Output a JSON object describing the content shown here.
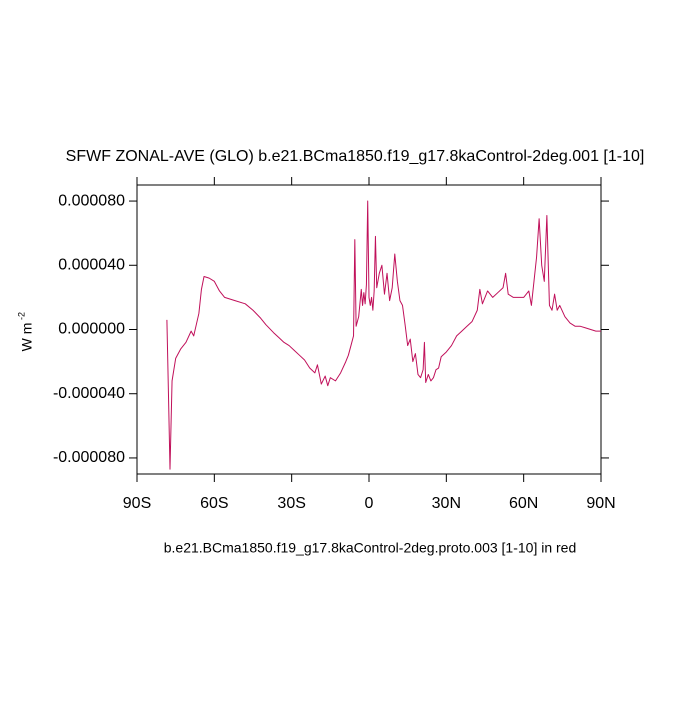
{
  "chart_data": {
    "type": "line",
    "title": "SFWF ZONAL-AVE (GLO) b.e21.BCma1850.f19_g17.8kaControl-2deg.001 [1-10]",
    "x_label": "b.e21.BCma1850.f19_g17.8kaControl-2deg.proto.003 [1-10] in red",
    "y_label": "W m",
    "y_label_exponent": "-2",
    "xlim": [
      -90,
      90
    ],
    "xticks": [
      {
        "value": -90,
        "label": "90S"
      },
      {
        "value": -60,
        "label": "60S"
      },
      {
        "value": -30,
        "label": "30S"
      },
      0,
      {
        "value": 30,
        "label": "30N"
      },
      {
        "value": 60,
        "label": "60N"
      },
      {
        "value": 90,
        "label": "90N"
      }
    ],
    "ylim": [
      -9e-05,
      9e-05
    ],
    "yticks": [
      {
        "value": 8e-05,
        "label": "0.000080"
      },
      {
        "value": 4e-05,
        "label": "0.000040"
      },
      {
        "value": 0,
        "label": "0.000000"
      },
      {
        "value": -4e-05,
        "label": "-0.000040"
      },
      {
        "value": -8e-05,
        "label": "-0.000080"
      }
    ],
    "series": [
      {
        "color": "#c0105a",
        "x": [
          -78.4,
          -77.8,
          -77.2,
          -76.4,
          -75,
          -73,
          -71,
          -69,
          -68,
          -67,
          -66,
          -65,
          -64,
          -62,
          -60,
          -58,
          -56,
          -52,
          -48,
          -45,
          -42,
          -40,
          -37,
          -35,
          -33,
          -31,
          -29,
          -27,
          -25,
          -23,
          -21,
          -20,
          -19,
          -18.5,
          -17,
          -16,
          -15,
          -13,
          -11,
          -9,
          -8,
          -7,
          -6,
          -5.5,
          -5,
          -4,
          -3,
          -2.5,
          -2,
          -1.5,
          -1,
          -0.5,
          0,
          0.5,
          1,
          1.5,
          2,
          2.5,
          3,
          4,
          5,
          6,
          7,
          8,
          9,
          10,
          11,
          12,
          13,
          14,
          15,
          16,
          17,
          18,
          19,
          20,
          21,
          21.5,
          22,
          23,
          24,
          25,
          26,
          27,
          28,
          30,
          32,
          34,
          36,
          38,
          40,
          42,
          43,
          44,
          46,
          48,
          50,
          52,
          53,
          54,
          56,
          58,
          60,
          62,
          63,
          64,
          65,
          66,
          67,
          68,
          69,
          70,
          71,
          72,
          73,
          74,
          76,
          78,
          80,
          82,
          84,
          86,
          88,
          90
        ],
        "values": [
          6e-06,
          -4e-05,
          -8.7e-05,
          -3.2e-05,
          -1.8e-05,
          -1.2e-05,
          -8e-06,
          -1e-06,
          -4e-06,
          3e-06,
          1e-05,
          2.5e-05,
          3.3e-05,
          3.2e-05,
          3e-05,
          2.4e-05,
          2e-05,
          1.8e-05,
          1.6e-05,
          1.2e-05,
          7e-06,
          3e-06,
          -2e-06,
          -5e-06,
          -8e-06,
          -1e-05,
          -1.3e-05,
          -1.6e-05,
          -1.9e-05,
          -2.4e-05,
          -2.7e-05,
          -2.2e-05,
          -3e-05,
          -3.4e-05,
          -2.9e-05,
          -3.5e-05,
          -3e-05,
          -3.2e-05,
          -2.7e-05,
          -2e-05,
          -1.6e-05,
          -1e-05,
          -4e-06,
          5.6e-05,
          2e-06,
          8e-06,
          2.5e-05,
          1.5e-05,
          2.3e-05,
          1.6e-05,
          2.8e-05,
          8e-05,
          2e-05,
          1.5e-05,
          2e-05,
          1.2e-05,
          2.4e-05,
          5.8e-05,
          2.6e-05,
          3.5e-05,
          4e-05,
          2.2e-05,
          3.5e-05,
          1.8e-05,
          2.6e-05,
          4.7e-05,
          3e-05,
          1.8e-05,
          1.5e-05,
          3e-06,
          -1e-05,
          -6e-06,
          -2e-05,
          -1.5e-05,
          -2.8e-05,
          -3e-05,
          -2.5e-05,
          -8e-06,
          -3.3e-05,
          -2.8e-05,
          -3.2e-05,
          -3e-05,
          -2.5e-05,
          -2.4e-05,
          -1.7e-05,
          -1.4e-05,
          -1e-05,
          -4e-06,
          -1e-06,
          2e-06,
          5e-06,
          1.2e-05,
          2.5e-05,
          1.6e-05,
          2.4e-05,
          2e-05,
          2.3e-05,
          2.6e-05,
          3.5e-05,
          2.2e-05,
          2e-05,
          2e-05,
          2e-05,
          2.4e-05,
          1.5e-05,
          3e-05,
          4.5e-05,
          6.9e-05,
          4e-05,
          3e-05,
          7.1e-05,
          1.5e-05,
          1.2e-05,
          2.2e-05,
          1.2e-05,
          1.5e-05,
          8e-06,
          4e-06,
          2e-06,
          2e-06,
          1e-06,
          0,
          -1e-06,
          -1e-06
        ]
      }
    ]
  }
}
